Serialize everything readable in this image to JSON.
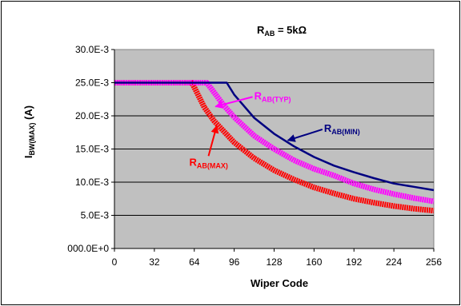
{
  "chart_data": {
    "type": "line",
    "title": {
      "main": "R",
      "sub": "AB",
      "rest": " = 5kΩ"
    },
    "xlabel": "Wiper Code",
    "ylabel": {
      "main": "I",
      "sub": "BW(MAX)",
      "rest": " (A)"
    },
    "xlim": [
      0,
      256
    ],
    "ylim": [
      0,
      0.03
    ],
    "x_ticks": [
      0,
      32,
      64,
      96,
      128,
      160,
      192,
      224,
      256
    ],
    "x_tick_labels": [
      "0",
      "32",
      "64",
      "96",
      "128",
      "160",
      "192",
      "224",
      "256"
    ],
    "y_ticks": [
      0,
      0.005,
      0.01,
      0.015,
      0.02,
      0.025,
      0.03
    ],
    "y_tick_labels": [
      "000.0E+0",
      "5.0E-3",
      "10.0E-3",
      "15.0E-3",
      "20.0E-3",
      "25.0E-3",
      "30.0E-3"
    ],
    "grid": "horizontal",
    "plot_background": "#c0c0c0",
    "series": [
      {
        "name": {
          "main": "R",
          "sub": "AB(MIN)"
        },
        "color": "#000080",
        "style": "thin line",
        "x": [
          0,
          16,
          32,
          48,
          64,
          80,
          90,
          96,
          112,
          128,
          144,
          160,
          176,
          192,
          208,
          224,
          240,
          256
        ],
        "values": [
          0.025,
          0.025,
          0.025,
          0.025,
          0.025,
          0.025,
          0.025,
          0.0232,
          0.0197,
          0.0173,
          0.0154,
          0.0138,
          0.0125,
          0.0115,
          0.0106,
          0.0098,
          0.0093,
          0.0088
        ]
      },
      {
        "name": {
          "main": "R",
          "sub": "AB(TYP)"
        },
        "color": "#ff00ff",
        "style": "thick dotted line",
        "x": [
          0,
          16,
          32,
          48,
          64,
          74,
          80,
          88,
          96,
          112,
          128,
          144,
          160,
          176,
          192,
          208,
          224,
          240,
          256
        ],
        "values": [
          0.025,
          0.025,
          0.025,
          0.025,
          0.025,
          0.025,
          0.0235,
          0.0215,
          0.0198,
          0.017,
          0.015,
          0.0133,
          0.012,
          0.011,
          0.0098,
          0.0089,
          0.0082,
          0.0076,
          0.0071
        ]
      },
      {
        "name": {
          "main": "R",
          "sub": "AB(MAX)"
        },
        "color": "#ff0000",
        "style": "thick dotted line",
        "x": [
          0,
          16,
          32,
          48,
          62,
          64,
          72,
          80,
          96,
          112,
          128,
          144,
          160,
          176,
          192,
          208,
          224,
          240,
          256
        ],
        "values": [
          0.025,
          0.025,
          0.025,
          0.025,
          0.025,
          0.0243,
          0.0213,
          0.0192,
          0.016,
          0.0136,
          0.0118,
          0.0104,
          0.0092,
          0.0083,
          0.0075,
          0.0069,
          0.0064,
          0.006,
          0.0057
        ]
      }
    ],
    "annotations": [
      {
        "series_index": 1,
        "text": {
          "main": "R",
          "sub": "AB(TYP)"
        },
        "color": "#ff00ff",
        "arrow_to": [
          81,
          0.0214
        ],
        "label_at": [
          112,
          0.0225
        ]
      },
      {
        "series_index": 0,
        "text": {
          "main": "R",
          "sub": "AB(MIN)"
        },
        "color": "#000080",
        "arrow_to": [
          139,
          0.0163
        ],
        "label_at": [
          168,
          0.0176
        ]
      },
      {
        "series_index": 2,
        "text": {
          "main": "R",
          "sub": "AB(MAX)"
        },
        "color": "#ff0000",
        "arrow_to": [
          82,
          0.0185
        ],
        "label_at": [
          60,
          0.0125
        ]
      }
    ]
  }
}
